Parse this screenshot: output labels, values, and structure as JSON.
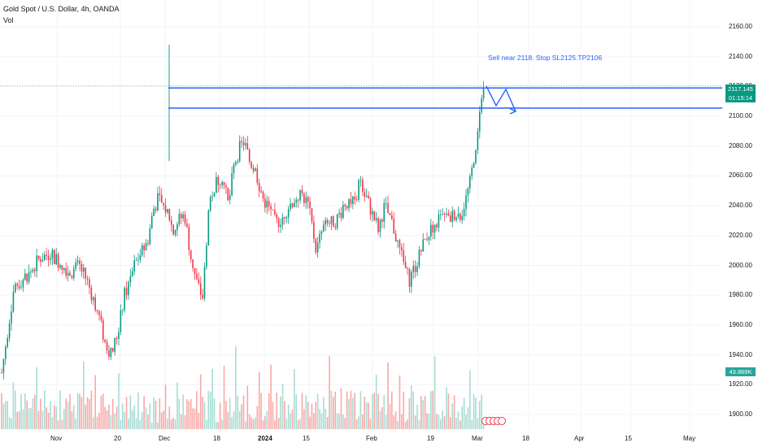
{
  "header": {
    "title": "Gold Spot / U.S. Dollar, 4h, OANDA",
    "indicator": "Vol"
  },
  "annotation": {
    "text": "Sell near 2118. Stop SL2125.TP2106"
  },
  "badges": {
    "price": "2117.145",
    "countdown": "01:15:14",
    "volume": "43.869K"
  },
  "colors": {
    "up": "#089981",
    "down": "#f23645",
    "up_vol": "#a8dcd3",
    "down_vol": "#f7a9a7",
    "line": "#2962ff",
    "grid": "#f0f3fa",
    "price_badge": "#089981",
    "volume_badge": "#26a69a"
  },
  "chart_data": {
    "type": "candlestick",
    "symbol": "Gold Spot / U.S. Dollar",
    "interval": "4h",
    "source": "OANDA",
    "ylim": [
      1894,
      2166
    ],
    "y_ticks": [
      1900,
      1920,
      1940,
      1960,
      1980,
      2000,
      2020,
      2040,
      2060,
      2080,
      2100,
      2120,
      2140,
      2160
    ],
    "x_ticks": [
      "Nov",
      "20",
      "Dec",
      "18",
      "2024",
      "15",
      "Feb",
      "19",
      "Mar",
      "18",
      "Apr",
      "15",
      "May"
    ],
    "price_path": [
      [
        1915,
        1928
      ],
      [
        1930,
        1985
      ],
      [
        1950,
        1995
      ],
      [
        1962,
        2005
      ],
      [
        1975,
        2008
      ],
      [
        1990,
        2000
      ],
      [
        2000,
        1995
      ],
      [
        2010,
        2000
      ],
      [
        2020,
        1990
      ],
      [
        2035,
        1965
      ],
      [
        2042,
        1948
      ],
      [
        2050,
        1940
      ],
      [
        2058,
        1955
      ],
      [
        2066,
        1980
      ],
      [
        2072,
        1988
      ],
      [
        2078,
        2000
      ],
      [
        2086,
        2008
      ],
      [
        2094,
        2015
      ],
      [
        2102,
        2038
      ],
      [
        2108,
        2045
      ],
      [
        2113,
        2040
      ],
      [
        2120,
        2035
      ],
      [
        2126,
        2022
      ],
      [
        2132,
        2030
      ],
      [
        2140,
        2034
      ],
      [
        2147,
        2008
      ],
      [
        2154,
        1990
      ],
      [
        2162,
        1978
      ],
      [
        2170,
        2042
      ],
      [
        2178,
        2055
      ],
      [
        2186,
        2060
      ],
      [
        2194,
        2040
      ],
      [
        2200,
        2065
      ],
      [
        2207,
        2078
      ],
      [
        2213,
        2083
      ],
      [
        2220,
        2070
      ],
      [
        2228,
        2062
      ],
      [
        2236,
        2045
      ],
      [
        2244,
        2038
      ],
      [
        2252,
        2028
      ],
      [
        2260,
        2032
      ],
      [
        2268,
        2040
      ],
      [
        2276,
        2045
      ],
      [
        2284,
        2048
      ],
      [
        2292,
        2040
      ],
      [
        2302,
        2010
      ],
      [
        2310,
        2025
      ],
      [
        2318,
        2028
      ],
      [
        2326,
        2030
      ],
      [
        2334,
        2038
      ],
      [
        2342,
        2045
      ],
      [
        2350,
        2040
      ],
      [
        2356,
        2060
      ],
      [
        2362,
        2048
      ],
      [
        2370,
        2035
      ],
      [
        2378,
        2025
      ],
      [
        2386,
        2040
      ],
      [
        2394,
        2030
      ],
      [
        2402,
        2015
      ],
      [
        2410,
        2000
      ],
      [
        2416,
        1990
      ],
      [
        2424,
        2000
      ],
      [
        2432,
        2012
      ],
      [
        2440,
        2022
      ],
      [
        2448,
        2028
      ],
      [
        2456,
        2032
      ],
      [
        2464,
        2030
      ],
      [
        2472,
        2035
      ],
      [
        2480,
        2034
      ],
      [
        2486,
        2045
      ],
      [
        2492,
        2058
      ],
      [
        2497,
        2078
      ],
      [
        2501,
        2090
      ],
      [
        2504,
        2117
      ]
    ],
    "lines": [
      {
        "type": "horizontal",
        "price": 2119.0
      },
      {
        "type": "horizontal",
        "price": 2105.5
      }
    ],
    "projection": [
      [
        2118,
        2118
      ],
      [
        2107,
        2106
      ]
    ],
    "current_price": 2117.145,
    "volume_last": "43.869K"
  }
}
